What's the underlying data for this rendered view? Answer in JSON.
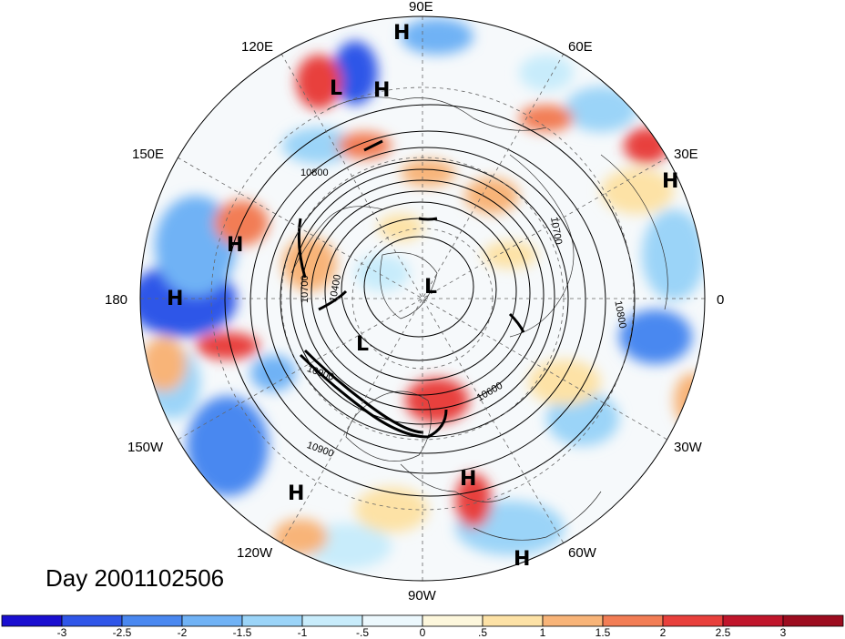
{
  "date_label": "Day 2001102506",
  "longitude_labels": [
    "90E",
    "60E",
    "30E",
    "0",
    "30W",
    "60W",
    "90W",
    "120W",
    "150W",
    "180",
    "150E",
    "120E"
  ],
  "pressure_systems": [
    {
      "type": "H"
    },
    {
      "type": "L"
    },
    {
      "type": "H"
    },
    {
      "type": "H"
    },
    {
      "type": "H"
    },
    {
      "type": "H"
    },
    {
      "type": "L"
    },
    {
      "type": "L"
    },
    {
      "type": "H"
    },
    {
      "type": "H"
    },
    {
      "type": "H"
    }
  ],
  "contour_labels": [
    "10800",
    "10700",
    "10400",
    "10700",
    "10800",
    "10600",
    "10900",
    "10900"
  ],
  "colorbar": {
    "ticks": [
      "-3",
      "-2.5",
      "-2",
      "-1.5",
      "-1",
      "-.5",
      "0",
      ".5",
      "1",
      "1.5",
      "2",
      "2.5",
      "3"
    ],
    "colors": [
      "#1a0fd0",
      "#2f56e8",
      "#4a88f0",
      "#70b2f5",
      "#9bd4f8",
      "#c8ecfb",
      "#ecf8fd",
      "#fdf7dc",
      "#fde2a6",
      "#f8b478",
      "#f27d55",
      "#e8403c",
      "#c0152b",
      "#9c0c1f"
    ]
  }
}
